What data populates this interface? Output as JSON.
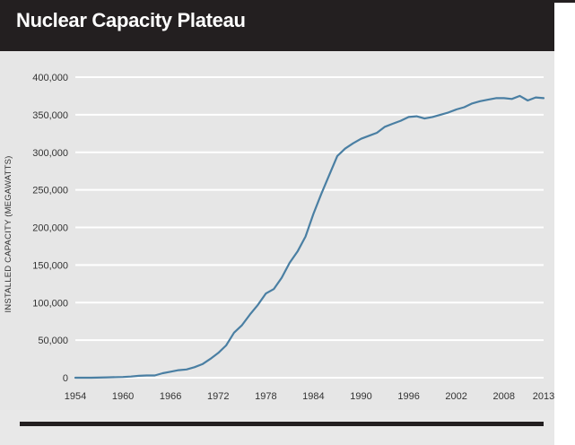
{
  "title": "Nuclear Capacity Plateau",
  "colors": {
    "line": "#4a7fa3",
    "grid": "#ffffff",
    "header": "#231f20",
    "background": "#e6e6e6"
  },
  "chart_data": {
    "type": "line",
    "title": "Nuclear Capacity Plateau",
    "xlabel": "",
    "ylabel": "INSTALLED CAPACITY (MEGAWATTS)",
    "xlim": [
      1954,
      2013
    ],
    "ylim": [
      0,
      400000
    ],
    "grid": true,
    "x_ticks": [
      "1954",
      "1960",
      "1966",
      "1972",
      "1978",
      "1984",
      "1990",
      "1996",
      "2002",
      "2008",
      "2013"
    ],
    "y_ticks": [
      "0",
      "50,000",
      "100,000",
      "150,000",
      "200,000",
      "250,000",
      "300,000",
      "350,000",
      "400,000"
    ],
    "x": [
      1954,
      1956,
      1958,
      1960,
      1961,
      1962,
      1963,
      1964,
      1965,
      1966,
      1967,
      1968,
      1969,
      1970,
      1971,
      1972,
      1973,
      1974,
      1975,
      1976,
      1977,
      1978,
      1979,
      1980,
      1981,
      1982,
      1983,
      1984,
      1985,
      1986,
      1987,
      1988,
      1989,
      1990,
      1991,
      1992,
      1993,
      1994,
      1995,
      1996,
      1997,
      1998,
      1999,
      2000,
      2001,
      2002,
      2003,
      2004,
      2005,
      2006,
      2007,
      2008,
      2009,
      2010,
      2011,
      2012,
      2013
    ],
    "series": [
      {
        "values": [
          0,
          0,
          500,
          1000,
          1500,
          2500,
          3000,
          3000,
          6000,
          8000,
          10000,
          11000,
          14000,
          18000,
          25000,
          33000,
          43000,
          60000,
          70000,
          84000,
          97000,
          112000,
          118000,
          133000,
          153000,
          168000,
          188000,
          218000,
          245000,
          270000,
          295000,
          305000,
          312000,
          318000,
          322000,
          326000,
          334000,
          338000,
          342000,
          347000,
          348000,
          345000,
          347000,
          350000,
          353000,
          357000,
          360000,
          365000,
          368000,
          370000,
          372000,
          372000,
          371000,
          375000,
          369000,
          373000,
          372000
        ]
      }
    ]
  }
}
